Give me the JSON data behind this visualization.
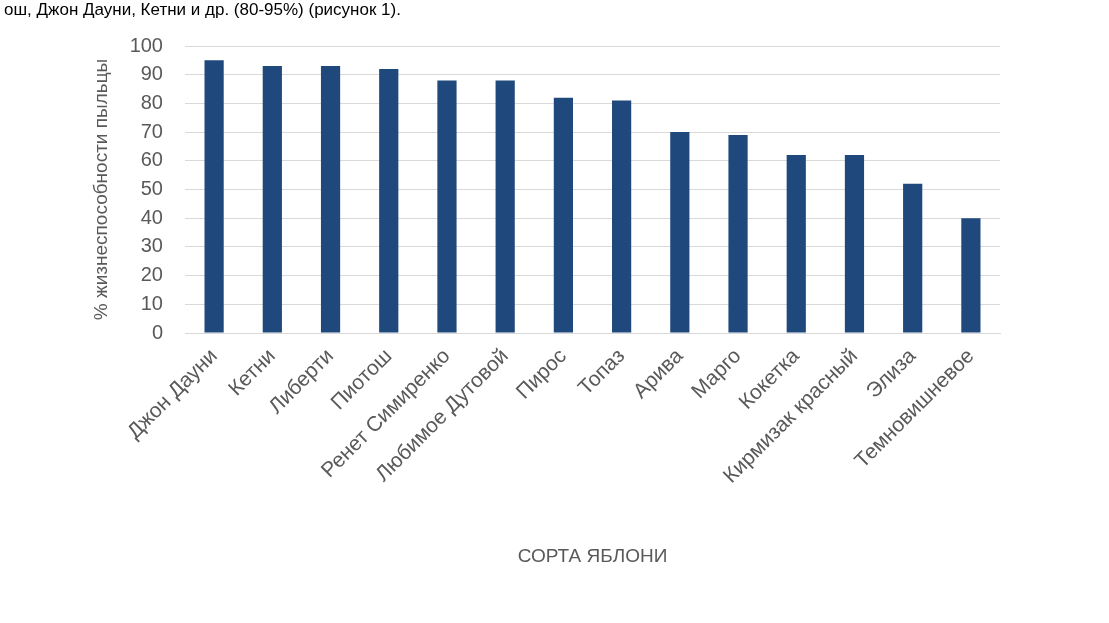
{
  "chart_data": {
    "type": "bar",
    "annotations": [
      "ош, Джон Дауни, Кетни и др. (80-95%) (рисунок 1)."
    ],
    "xlabel": "СОРТА ЯБЛОНИ",
    "ylabel": "% жизнеспособности пыльцы",
    "categories": [
      "Джон Дауни",
      "Кетни",
      "Либерти",
      "Пиотош",
      "Ренет Симиренко",
      "Любимое Дутовой",
      "Пирос",
      "Топаз",
      "Арива",
      "Марго",
      "Кокетка",
      "Кирмизак красный",
      "Элиза",
      "Темновишневое"
    ],
    "values": [
      95,
      93,
      93,
      92,
      88,
      88,
      82,
      81,
      70,
      69,
      62,
      62,
      52,
      40
    ],
    "color": "#1f497d",
    "ylim": [
      0,
      100
    ],
    "yticks": [
      0,
      10,
      20,
      30,
      40,
      50,
      60,
      70,
      80,
      90,
      100
    ],
    "grid": "y"
  }
}
